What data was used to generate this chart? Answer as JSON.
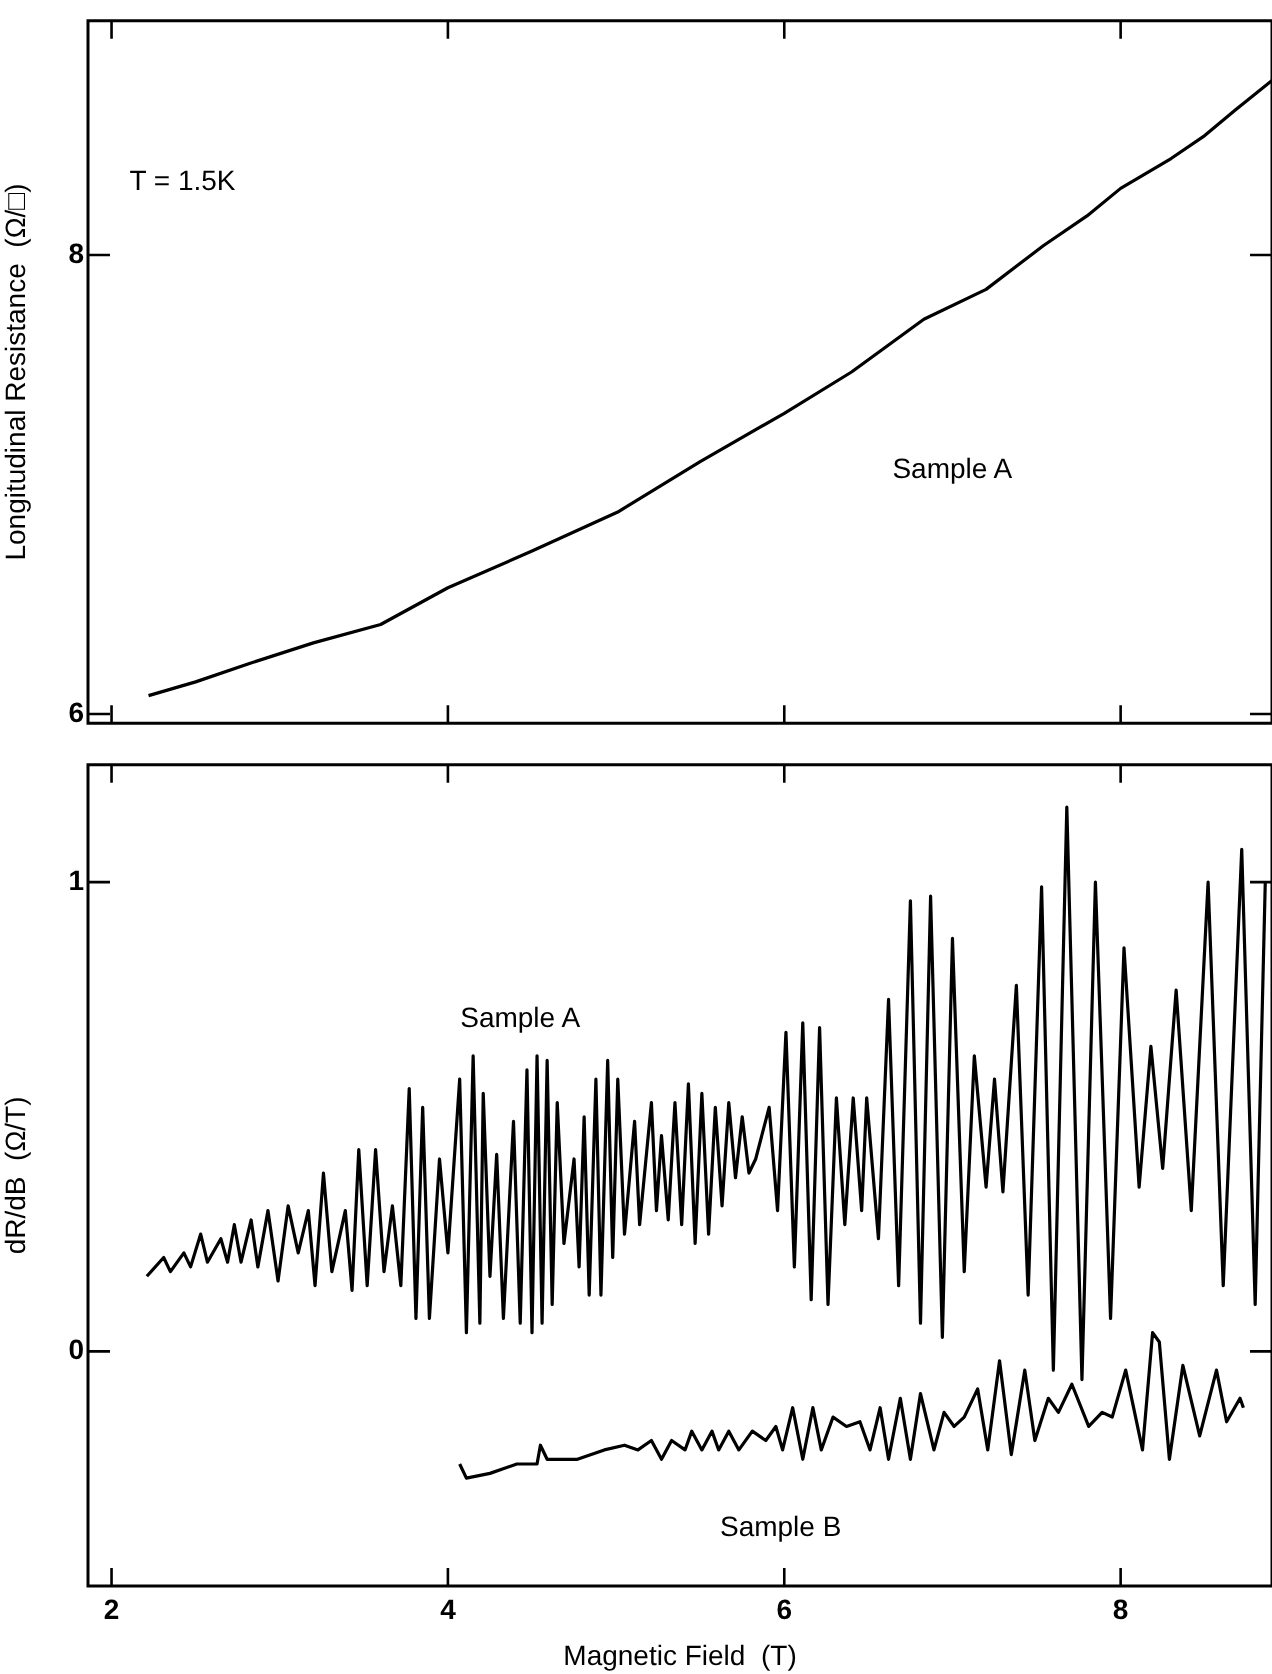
{
  "chart_data": [
    {
      "type": "line",
      "ylabel": "Longitudinal Resistance  (Ω/□)",
      "annotations": [
        "T = 1.5K"
      ],
      "xlim": [
        1.86,
        8.9
      ],
      "xticks": [
        2,
        4,
        6,
        8
      ],
      "ylim": [
        5.96,
        9.02
      ],
      "yticks": [
        6,
        8
      ],
      "tick_labels": "y",
      "marker": "none",
      "series": [
        {
          "name": "Sample A",
          "color": "#000000",
          "x": [
            2.22,
            2.5,
            2.82,
            3.2,
            3.6,
            4,
            4.5,
            5.01,
            5.5,
            6,
            6.4,
            6.83,
            7.2,
            7.54,
            7.8,
            8,
            8.3,
            8.5,
            8.68,
            8.9
          ],
          "values": [
            6.08,
            6.14,
            6.22,
            6.31,
            6.39,
            6.55,
            6.71,
            6.88,
            7.1,
            7.31,
            7.49,
            7.72,
            7.85,
            8.04,
            8.17,
            8.29,
            8.42,
            8.52,
            8.63,
            8.76
          ]
        }
      ]
    },
    {
      "type": "line",
      "xlabel": "Magnetic Field  (T)",
      "ylabel": "dR/dB  (Ω/T)",
      "xlim": [
        1.86,
        8.9
      ],
      "xticks": [
        2,
        4,
        6,
        8
      ],
      "ylim": [
        -0.5,
        1.25
      ],
      "yticks": [
        0,
        1
      ],
      "marker": "none",
      "series": [
        {
          "name": "Sample A",
          "color": "#000000",
          "x": [
            2.21,
            2.31,
            2.35,
            2.43,
            2.47,
            2.53,
            2.57,
            2.65,
            2.69,
            2.73,
            2.77,
            2.83,
            2.87,
            2.93,
            2.99,
            3.05,
            3.11,
            3.17,
            3.21,
            3.26,
            3.31,
            3.39,
            3.43,
            3.47,
            3.52,
            3.57,
            3.62,
            3.67,
            3.72,
            3.77,
            3.81,
            3.85,
            3.89,
            3.95,
            4.0,
            4.07,
            4.11,
            4.15,
            4.19,
            4.21,
            4.25,
            4.29,
            4.33,
            4.39,
            4.43,
            4.47,
            4.5,
            4.53,
            4.56,
            4.59,
            4.62,
            4.65,
            4.69,
            4.75,
            4.78,
            4.81,
            4.84,
            4.88,
            4.91,
            4.95,
            4.98,
            5.01,
            5.05,
            5.11,
            5.14,
            5.21,
            5.24,
            5.27,
            5.31,
            5.35,
            5.39,
            5.43,
            5.47,
            5.51,
            5.55,
            5.59,
            5.63,
            5.67,
            5.71,
            5.75,
            5.79,
            5.83,
            5.91,
            5.96,
            6.01,
            6.06,
            6.11,
            6.16,
            6.21,
            6.26,
            6.31,
            6.36,
            6.41,
            6.46,
            6.49,
            6.56,
            6.62,
            6.68,
            6.75,
            6.81,
            6.87,
            6.94,
            7.0,
            7.07,
            7.13,
            7.2,
            7.25,
            7.3,
            7.38,
            7.45,
            7.53,
            7.6,
            7.68,
            7.77,
            7.85,
            7.94,
            8.02,
            8.11,
            8.18,
            8.25,
            8.33,
            8.42,
            8.52,
            8.61,
            8.72,
            8.8,
            8.86
          ],
          "values": [
            0.16,
            0.2,
            0.17,
            0.21,
            0.18,
            0.25,
            0.19,
            0.24,
            0.19,
            0.27,
            0.19,
            0.28,
            0.18,
            0.3,
            0.15,
            0.31,
            0.21,
            0.3,
            0.14,
            0.38,
            0.17,
            0.3,
            0.13,
            0.43,
            0.14,
            0.43,
            0.17,
            0.31,
            0.14,
            0.56,
            0.07,
            0.52,
            0.07,
            0.41,
            0.21,
            0.58,
            0.04,
            0.63,
            0.06,
            0.55,
            0.16,
            0.42,
            0.07,
            0.49,
            0.06,
            0.6,
            0.04,
            0.63,
            0.06,
            0.62,
            0.1,
            0.53,
            0.23,
            0.41,
            0.18,
            0.5,
            0.12,
            0.58,
            0.12,
            0.62,
            0.2,
            0.58,
            0.25,
            0.49,
            0.27,
            0.53,
            0.3,
            0.46,
            0.28,
            0.53,
            0.27,
            0.57,
            0.23,
            0.55,
            0.25,
            0.52,
            0.31,
            0.53,
            0.37,
            0.5,
            0.38,
            0.41,
            0.52,
            0.3,
            0.68,
            0.18,
            0.7,
            0.11,
            0.69,
            0.1,
            0.54,
            0.27,
            0.54,
            0.3,
            0.54,
            0.24,
            0.75,
            0.14,
            0.96,
            0.06,
            0.97,
            0.03,
            0.88,
            0.17,
            0.63,
            0.35,
            0.58,
            0.34,
            0.78,
            0.12,
            0.99,
            -0.04,
            1.16,
            -0.06,
            1.0,
            0.07,
            0.86,
            0.35,
            0.65,
            0.39,
            0.77,
            0.3,
            1.0,
            0.14,
            1.07,
            0.1,
            1.0
          ]
        },
        {
          "name": "Sample B",
          "color": "#000000",
          "x": [
            4.07,
            4.11,
            4.25,
            4.41,
            4.53,
            4.55,
            4.59,
            4.77,
            4.93,
            5.05,
            5.13,
            5.21,
            5.27,
            5.33,
            5.41,
            5.45,
            5.51,
            5.57,
            5.61,
            5.67,
            5.73,
            5.81,
            5.89,
            5.95,
            5.99,
            6.05,
            6.11,
            6.17,
            6.22,
            6.29,
            6.37,
            6.45,
            6.51,
            6.57,
            6.62,
            6.69,
            6.75,
            6.81,
            6.89,
            6.95,
            7.01,
            7.07,
            7.15,
            7.21,
            7.28,
            7.35,
            7.43,
            7.49,
            7.57,
            7.63,
            7.71,
            7.81,
            7.89,
            7.95,
            8.03,
            8.13,
            8.19,
            8.23,
            8.29,
            8.37,
            8.41,
            8.47,
            8.57,
            8.63,
            8.71,
            8.73
          ],
          "values": [
            -0.24,
            -0.27,
            -0.26,
            -0.24,
            -0.24,
            -0.2,
            -0.23,
            -0.23,
            -0.21,
            -0.2,
            -0.21,
            -0.19,
            -0.23,
            -0.19,
            -0.21,
            -0.17,
            -0.21,
            -0.17,
            -0.21,
            -0.17,
            -0.21,
            -0.17,
            -0.19,
            -0.16,
            -0.21,
            -0.12,
            -0.23,
            -0.12,
            -0.21,
            -0.14,
            -0.16,
            -0.15,
            -0.21,
            -0.12,
            -0.23,
            -0.1,
            -0.23,
            -0.09,
            -0.21,
            -0.13,
            -0.16,
            -0.14,
            -0.08,
            -0.21,
            -0.02,
            -0.22,
            -0.04,
            -0.19,
            -0.1,
            -0.13,
            -0.07,
            -0.16,
            -0.13,
            -0.14,
            -0.04,
            -0.21,
            0.04,
            0.02,
            -0.23,
            -0.03,
            -0.09,
            -0.18,
            -0.04,
            -0.15,
            -0.1,
            -0.12
          ]
        }
      ]
    }
  ]
}
